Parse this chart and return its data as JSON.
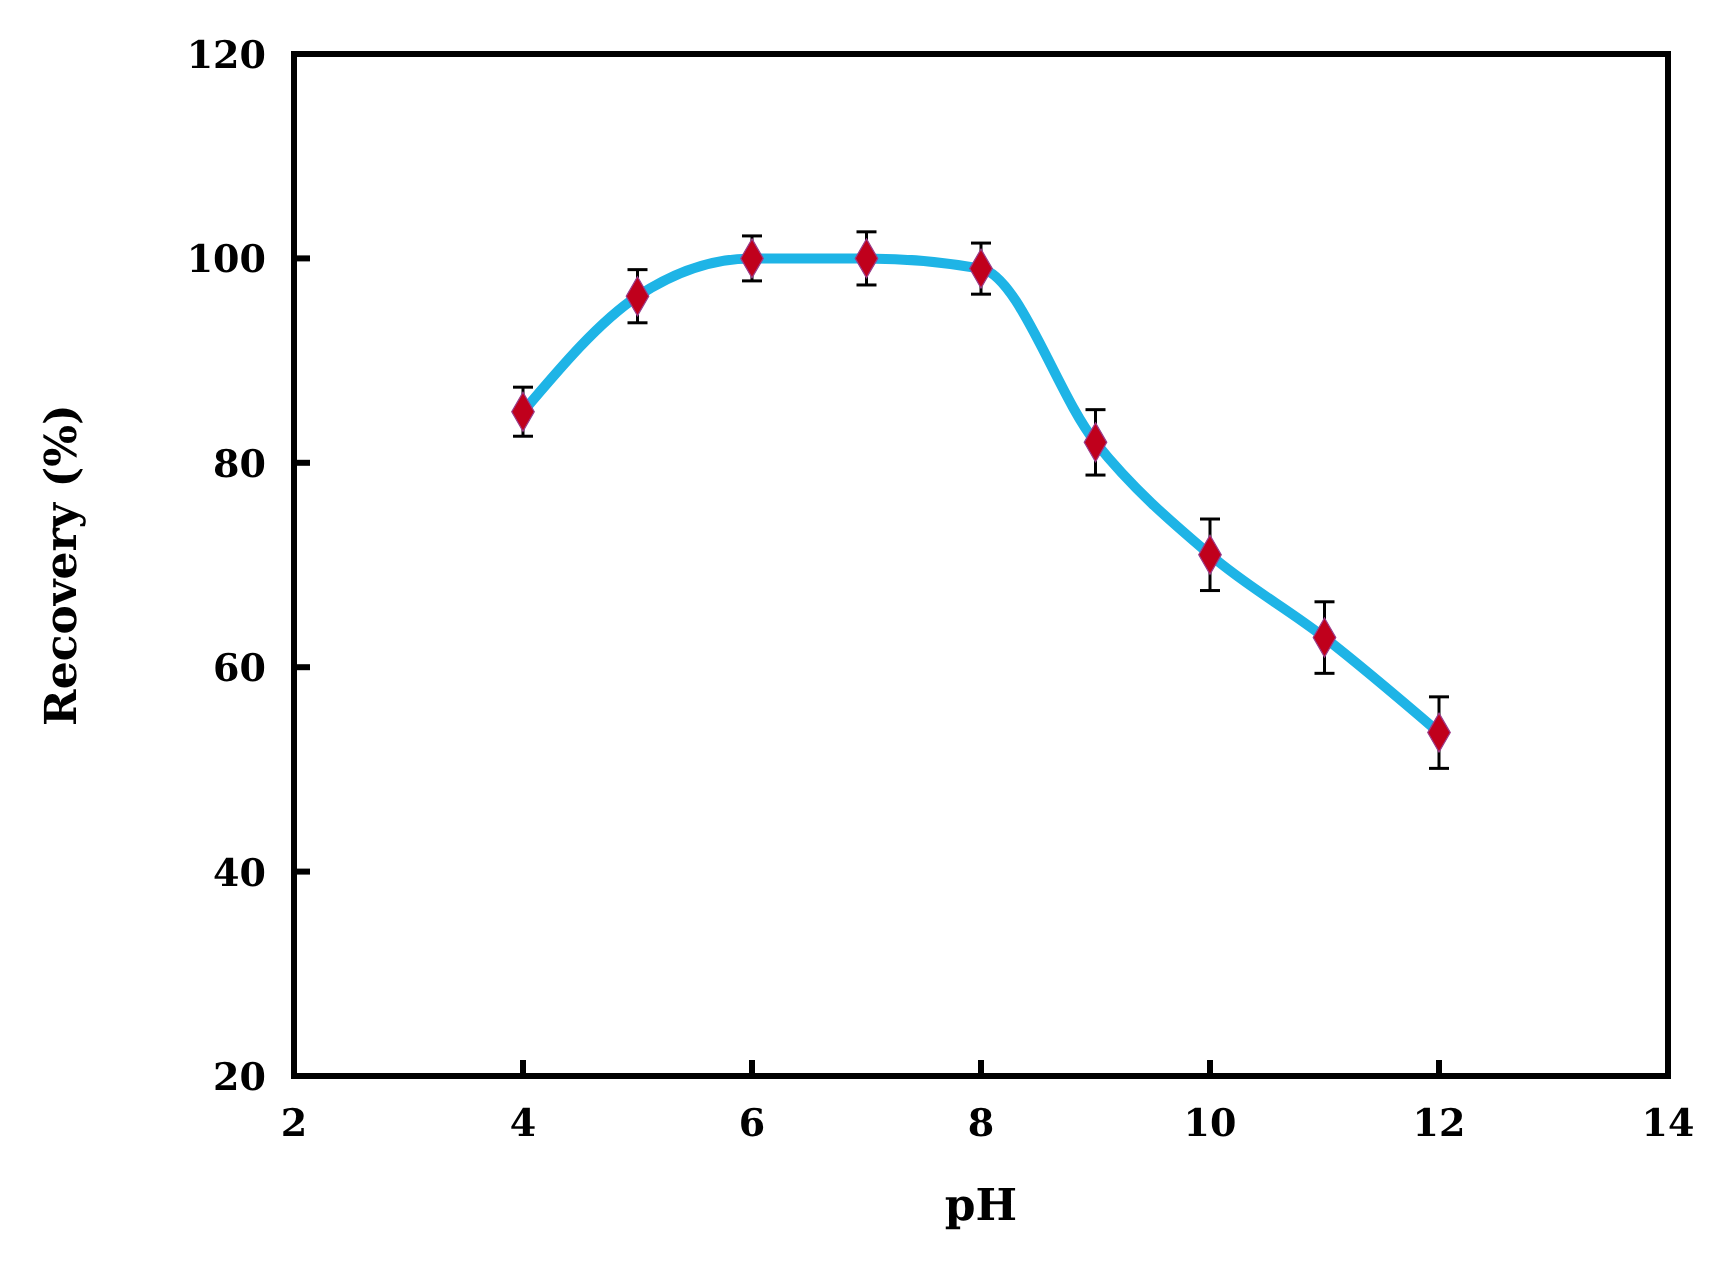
{
  "chart_data": {
    "type": "line",
    "xlabel": "pH",
    "ylabel": "Recovery (%)",
    "x": [
      4,
      5,
      6,
      7,
      8,
      9,
      10,
      11,
      12
    ],
    "series": [
      {
        "color": "#1eb4e6",
        "values": [
          85,
          96.3,
          100,
          100,
          99,
          82,
          71,
          62.9,
          53.6
        ],
        "errors": [
          2.4,
          2.6,
          2.2,
          2.6,
          2.5,
          3.2,
          3.5,
          3.5,
          3.5
        ]
      }
    ],
    "xlim": [
      2,
      14
    ],
    "xticks": [
      2,
      4,
      6,
      8,
      10,
      12,
      14
    ],
    "ylim": [
      20,
      120
    ],
    "yticks": [
      20,
      40,
      60,
      80,
      100,
      120
    ],
    "marker": "diamond",
    "line_style": "solid"
  }
}
